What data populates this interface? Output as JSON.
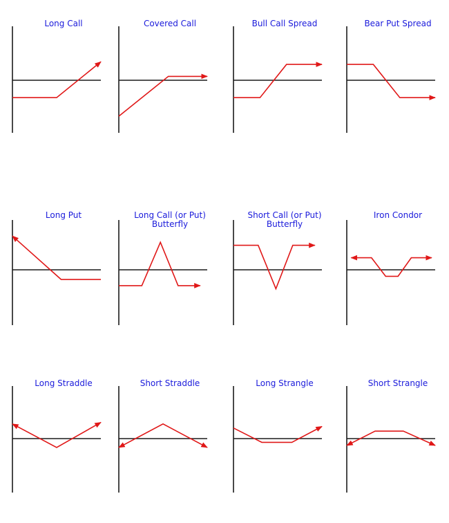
{
  "colors": {
    "title": "#1a1adb",
    "axis": "#1a1a1a",
    "payoff": "#e01818"
  },
  "panels": [
    {
      "name": "long-call",
      "title": "Long Call",
      "payoff": [
        [
          0,
          0.72
        ],
        [
          0.5,
          0.72
        ],
        [
          1,
          0.18
        ]
      ],
      "arrow_start": false,
      "arrow_end": true
    },
    {
      "name": "covered-call",
      "title": "Covered Call",
      "payoff": [
        [
          0,
          1.0
        ],
        [
          0.56,
          0.4
        ],
        [
          1,
          0.4
        ]
      ],
      "arrow_start": false,
      "arrow_end": true
    },
    {
      "name": "bull-call-spread",
      "title": "Bull Call Spread",
      "payoff": [
        [
          0,
          0.72
        ],
        [
          0.3,
          0.72
        ],
        [
          0.6,
          0.22
        ],
        [
          1,
          0.22
        ]
      ],
      "arrow_start": false,
      "arrow_end": true
    },
    {
      "name": "bear-put-spread",
      "title": "Bear Put Spread",
      "payoff": [
        [
          0,
          0.22
        ],
        [
          0.3,
          0.22
        ],
        [
          0.6,
          0.72
        ],
        [
          1,
          0.72
        ]
      ],
      "arrow_start": false,
      "arrow_end": true
    },
    {
      "name": "long-put",
      "title": "Long Put",
      "payoff": [
        [
          0,
          0.1
        ],
        [
          0.55,
          0.66
        ],
        [
          1,
          0.66
        ]
      ],
      "arrow_start": true,
      "arrow_end": false
    },
    {
      "name": "long-butterfly",
      "title": "Long Call (or Put)\nButterfly",
      "payoff": [
        [
          0,
          0.74
        ],
        [
          0.26,
          0.74
        ],
        [
          0.47,
          0.18
        ],
        [
          0.67,
          0.74
        ],
        [
          0.92,
          0.74
        ]
      ],
      "arrow_start": false,
      "arrow_end": true
    },
    {
      "name": "short-butterfly",
      "title": "Short Call (or Put)\nButterfly",
      "payoff": [
        [
          0,
          0.22
        ],
        [
          0.28,
          0.22
        ],
        [
          0.48,
          0.78
        ],
        [
          0.67,
          0.22
        ],
        [
          0.92,
          0.22
        ]
      ],
      "arrow_start": false,
      "arrow_end": true
    },
    {
      "name": "iron-condor",
      "title": "Iron Condor",
      "payoff": [
        [
          0.05,
          0.38
        ],
        [
          0.28,
          0.38
        ],
        [
          0.44,
          0.62
        ],
        [
          0.58,
          0.62
        ],
        [
          0.73,
          0.38
        ],
        [
          0.96,
          0.38
        ]
      ],
      "arrow_start": true,
      "arrow_end": true
    },
    {
      "name": "long-straddle",
      "title": "Long Straddle",
      "payoff": [
        [
          0,
          0.2
        ],
        [
          0.5,
          0.66
        ],
        [
          1,
          0.17
        ]
      ],
      "arrow_start": true,
      "arrow_end": true
    },
    {
      "name": "short-straddle",
      "title": "Short Straddle",
      "payoff": [
        [
          0,
          0.66
        ],
        [
          0.5,
          0.2
        ],
        [
          1,
          0.66
        ]
      ],
      "arrow_start": true,
      "arrow_end": true
    },
    {
      "name": "long-strangle",
      "title": "Long Strangle",
      "payoff": [
        [
          0,
          0.28
        ],
        [
          0.32,
          0.56
        ],
        [
          0.66,
          0.56
        ],
        [
          1,
          0.25
        ]
      ],
      "arrow_start": false,
      "arrow_end": true
    },
    {
      "name": "short-strangle",
      "title": "Short Strangle",
      "payoff": [
        [
          0,
          0.62
        ],
        [
          0.32,
          0.34
        ],
        [
          0.64,
          0.34
        ],
        [
          1,
          0.62
        ]
      ],
      "arrow_start": true,
      "arrow_end": true
    }
  ]
}
